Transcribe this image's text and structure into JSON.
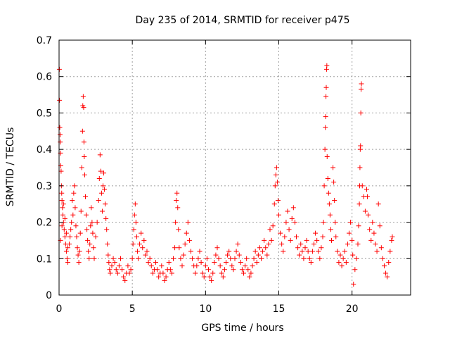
{
  "chart_data": {
    "type": "scatter",
    "title": "Day 235 of 2014, SRMTID for receiver p475",
    "xlabel": "GPS time / hours",
    "ylabel": "SRMTID / TECUs",
    "xlim": [
      0,
      24
    ],
    "ylim": [
      0,
      0.7
    ],
    "xticks": [
      0,
      5,
      10,
      15,
      20
    ],
    "yticks": [
      0,
      0.1,
      0.2,
      0.3,
      0.4,
      0.5,
      0.6,
      0.7
    ],
    "grid": true,
    "marker": "+",
    "marker_color": "#ff0000",
    "series": [
      {
        "name": "SRMTID p475",
        "points": [
          [
            0.02,
            0.62
          ],
          [
            0.03,
            0.535
          ],
          [
            0.05,
            0.46
          ],
          [
            0.07,
            0.44
          ],
          [
            0.08,
            0.42
          ],
          [
            0.1,
            0.39
          ],
          [
            0.12,
            0.355
          ],
          [
            0.14,
            0.34
          ],
          [
            0.16,
            0.3
          ],
          [
            0.18,
            0.28
          ],
          [
            0.2,
            0.26
          ],
          [
            0.23,
            0.24
          ],
          [
            0.26,
            0.22
          ],
          [
            0.3,
            0.2
          ],
          [
            0.35,
            0.18
          ],
          [
            0.4,
            0.16
          ],
          [
            0.45,
            0.14
          ],
          [
            0.5,
            0.12
          ],
          [
            0.55,
            0.1
          ],
          [
            0.6,
            0.09
          ],
          [
            0.1,
            0.15
          ],
          [
            0.2,
            0.19
          ],
          [
            0.3,
            0.25
          ],
          [
            0.4,
            0.21
          ],
          [
            0.5,
            0.17
          ],
          [
            0.6,
            0.13
          ],
          [
            0.7,
            0.14
          ],
          [
            0.75,
            0.16
          ],
          [
            0.8,
            0.18
          ],
          [
            0.85,
            0.2
          ],
          [
            0.9,
            0.26
          ],
          [
            0.95,
            0.22
          ],
          [
            1.0,
            0.28
          ],
          [
            1.05,
            0.3
          ],
          [
            1.1,
            0.24
          ],
          [
            1.15,
            0.19
          ],
          [
            1.2,
            0.16
          ],
          [
            1.25,
            0.13
          ],
          [
            1.3,
            0.11
          ],
          [
            1.35,
            0.09
          ],
          [
            1.4,
            0.12
          ],
          [
            1.45,
            0.17
          ],
          [
            1.5,
            0.23
          ],
          [
            1.55,
            0.35
          ],
          [
            1.6,
            0.45
          ],
          [
            1.62,
            0.52
          ],
          [
            1.65,
            0.545
          ],
          [
            1.68,
            0.515
          ],
          [
            1.7,
            0.42
          ],
          [
            1.72,
            0.38
          ],
          [
            1.75,
            0.33
          ],
          [
            1.8,
            0.27
          ],
          [
            1.85,
            0.22
          ],
          [
            1.9,
            0.18
          ],
          [
            1.95,
            0.15
          ],
          [
            2.0,
            0.12
          ],
          [
            2.05,
            0.1
          ],
          [
            2.1,
            0.14
          ],
          [
            2.15,
            0.19
          ],
          [
            2.2,
            0.24
          ],
          [
            2.25,
            0.2
          ],
          [
            2.3,
            0.17
          ],
          [
            2.35,
            0.13
          ],
          [
            2.4,
            0.1
          ],
          [
            2.5,
            0.16
          ],
          [
            2.6,
            0.2
          ],
          [
            2.7,
            0.26
          ],
          [
            2.75,
            0.32
          ],
          [
            2.8,
            0.385
          ],
          [
            2.85,
            0.34
          ],
          [
            2.9,
            0.28
          ],
          [
            2.95,
            0.23
          ],
          [
            3.0,
            0.3
          ],
          [
            3.05,
            0.335
          ],
          [
            3.1,
            0.29
          ],
          [
            3.15,
            0.25
          ],
          [
            3.2,
            0.21
          ],
          [
            3.25,
            0.18
          ],
          [
            3.3,
            0.14
          ],
          [
            3.35,
            0.11
          ],
          [
            3.4,
            0.09
          ],
          [
            3.45,
            0.07
          ],
          [
            3.5,
            0.06
          ],
          [
            3.6,
            0.08
          ],
          [
            3.7,
            0.1
          ],
          [
            3.8,
            0.09
          ],
          [
            3.9,
            0.07
          ],
          [
            4.0,
            0.06
          ],
          [
            4.1,
            0.08
          ],
          [
            4.2,
            0.1
          ],
          [
            4.3,
            0.07
          ],
          [
            4.4,
            0.05
          ],
          [
            4.5,
            0.04
          ],
          [
            4.6,
            0.06
          ],
          [
            4.7,
            0.08
          ],
          [
            4.8,
            0.06
          ],
          [
            4.9,
            0.07
          ],
          [
            5.0,
            0.1
          ],
          [
            5.05,
            0.14
          ],
          [
            5.1,
            0.18
          ],
          [
            5.15,
            0.22
          ],
          [
            5.2,
            0.25
          ],
          [
            5.25,
            0.2
          ],
          [
            5.3,
            0.16
          ],
          [
            5.35,
            0.12
          ],
          [
            5.4,
            0.1
          ],
          [
            5.5,
            0.14
          ],
          [
            5.6,
            0.17
          ],
          [
            5.7,
            0.13
          ],
          [
            5.8,
            0.15
          ],
          [
            5.9,
            0.11
          ],
          [
            6.0,
            0.12
          ],
          [
            6.1,
            0.09
          ],
          [
            6.2,
            0.1
          ],
          [
            6.3,
            0.08
          ],
          [
            6.4,
            0.06
          ],
          [
            6.5,
            0.07
          ],
          [
            6.6,
            0.09
          ],
          [
            6.7,
            0.07
          ],
          [
            6.8,
            0.05
          ],
          [
            6.9,
            0.06
          ],
          [
            7.0,
            0.08
          ],
          [
            7.1,
            0.06
          ],
          [
            7.2,
            0.04
          ],
          [
            7.3,
            0.05
          ],
          [
            7.4,
            0.07
          ],
          [
            7.5,
            0.09
          ],
          [
            7.6,
            0.07
          ],
          [
            7.7,
            0.06
          ],
          [
            7.8,
            0.1
          ],
          [
            7.9,
            0.13
          ],
          [
            7.95,
            0.2
          ],
          [
            8.0,
            0.26
          ],
          [
            8.05,
            0.28
          ],
          [
            8.1,
            0.24
          ],
          [
            8.15,
            0.18
          ],
          [
            8.2,
            0.13
          ],
          [
            8.3,
            0.1
          ],
          [
            8.4,
            0.08
          ],
          [
            8.5,
            0.11
          ],
          [
            8.6,
            0.14
          ],
          [
            8.7,
            0.17
          ],
          [
            8.8,
            0.2
          ],
          [
            8.9,
            0.15
          ],
          [
            9.0,
            0.12
          ],
          [
            9.1,
            0.1
          ],
          [
            9.2,
            0.08
          ],
          [
            9.3,
            0.06
          ],
          [
            9.4,
            0.08
          ],
          [
            9.5,
            0.1
          ],
          [
            9.6,
            0.12
          ],
          [
            9.7,
            0.09
          ],
          [
            9.8,
            0.06
          ],
          [
            9.9,
            0.05
          ],
          [
            10.0,
            0.08
          ],
          [
            10.1,
            0.1
          ],
          [
            10.2,
            0.07
          ],
          [
            10.3,
            0.05
          ],
          [
            10.4,
            0.04
          ],
          [
            10.5,
            0.06
          ],
          [
            10.6,
            0.09
          ],
          [
            10.7,
            0.11
          ],
          [
            10.8,
            0.13
          ],
          [
            10.9,
            0.1
          ],
          [
            11.0,
            0.08
          ],
          [
            11.1,
            0.06
          ],
          [
            11.2,
            0.05
          ],
          [
            11.3,
            0.07
          ],
          [
            11.4,
            0.09
          ],
          [
            11.5,
            0.11
          ],
          [
            11.6,
            0.12
          ],
          [
            11.7,
            0.1
          ],
          [
            11.8,
            0.08
          ],
          [
            11.9,
            0.07
          ],
          [
            12.0,
            0.1
          ],
          [
            12.1,
            0.12
          ],
          [
            12.2,
            0.14
          ],
          [
            12.3,
            0.11
          ],
          [
            12.4,
            0.09
          ],
          [
            12.5,
            0.07
          ],
          [
            12.6,
            0.06
          ],
          [
            12.7,
            0.08
          ],
          [
            12.8,
            0.1
          ],
          [
            12.9,
            0.07
          ],
          [
            13.0,
            0.05
          ],
          [
            13.1,
            0.06
          ],
          [
            13.2,
            0.08
          ],
          [
            13.3,
            0.1
          ],
          [
            13.4,
            0.12
          ],
          [
            13.5,
            0.09
          ],
          [
            13.6,
            0.11
          ],
          [
            13.7,
            0.13
          ],
          [
            13.8,
            0.1
          ],
          [
            13.9,
            0.12
          ],
          [
            14.0,
            0.15
          ],
          [
            14.1,
            0.13
          ],
          [
            14.2,
            0.11
          ],
          [
            14.3,
            0.14
          ],
          [
            14.4,
            0.18
          ],
          [
            14.5,
            0.15
          ],
          [
            14.6,
            0.19
          ],
          [
            14.7,
            0.25
          ],
          [
            14.75,
            0.3
          ],
          [
            14.8,
            0.33
          ],
          [
            14.85,
            0.35
          ],
          [
            14.9,
            0.31
          ],
          [
            14.95,
            0.26
          ],
          [
            15.0,
            0.22
          ],
          [
            15.1,
            0.17
          ],
          [
            15.2,
            0.14
          ],
          [
            15.3,
            0.12
          ],
          [
            15.4,
            0.16
          ],
          [
            15.5,
            0.2
          ],
          [
            15.6,
            0.23
          ],
          [
            15.7,
            0.18
          ],
          [
            15.8,
            0.15
          ],
          [
            15.9,
            0.21
          ],
          [
            16.0,
            0.24
          ],
          [
            16.1,
            0.2
          ],
          [
            16.2,
            0.16
          ],
          [
            16.3,
            0.13
          ],
          [
            16.4,
            0.11
          ],
          [
            16.5,
            0.14
          ],
          [
            16.6,
            0.12
          ],
          [
            16.7,
            0.1
          ],
          [
            16.8,
            0.13
          ],
          [
            16.9,
            0.15
          ],
          [
            17.0,
            0.12
          ],
          [
            17.1,
            0.1
          ],
          [
            17.2,
            0.09
          ],
          [
            17.3,
            0.12
          ],
          [
            17.4,
            0.14
          ],
          [
            17.5,
            0.17
          ],
          [
            17.6,
            0.15
          ],
          [
            17.7,
            0.12
          ],
          [
            17.8,
            0.1
          ],
          [
            17.9,
            0.13
          ],
          [
            18.0,
            0.16
          ],
          [
            18.05,
            0.2
          ],
          [
            18.1,
            0.3
          ],
          [
            18.15,
            0.4
          ],
          [
            18.18,
            0.46
          ],
          [
            18.2,
            0.49
          ],
          [
            18.22,
            0.545
          ],
          [
            18.24,
            0.57
          ],
          [
            18.26,
            0.62
          ],
          [
            18.28,
            0.63
          ],
          [
            18.3,
            0.38
          ],
          [
            18.35,
            0.32
          ],
          [
            18.4,
            0.28
          ],
          [
            18.45,
            0.25
          ],
          [
            18.5,
            0.22
          ],
          [
            18.55,
            0.18
          ],
          [
            18.6,
            0.15
          ],
          [
            18.7,
            0.35
          ],
          [
            18.75,
            0.31
          ],
          [
            18.8,
            0.26
          ],
          [
            18.85,
            0.2
          ],
          [
            18.9,
            0.16
          ],
          [
            19.0,
            0.12
          ],
          [
            19.1,
            0.09
          ],
          [
            19.2,
            0.11
          ],
          [
            19.3,
            0.08
          ],
          [
            19.4,
            0.1
          ],
          [
            19.5,
            0.12
          ],
          [
            19.6,
            0.09
          ],
          [
            19.7,
            0.14
          ],
          [
            19.8,
            0.17
          ],
          [
            19.9,
            0.2
          ],
          [
            20.0,
            0.15
          ],
          [
            20.05,
            0.11
          ],
          [
            20.1,
            0.03
          ],
          [
            20.2,
            0.07
          ],
          [
            20.3,
            0.1
          ],
          [
            20.4,
            0.14
          ],
          [
            20.45,
            0.19
          ],
          [
            20.5,
            0.25
          ],
          [
            20.52,
            0.3
          ],
          [
            20.54,
            0.35
          ],
          [
            20.56,
            0.4
          ],
          [
            20.58,
            0.41
          ],
          [
            20.6,
            0.5
          ],
          [
            20.62,
            0.565
          ],
          [
            20.64,
            0.58
          ],
          [
            20.7,
            0.3
          ],
          [
            20.8,
            0.27
          ],
          [
            20.9,
            0.23
          ],
          [
            21.0,
            0.29
          ],
          [
            21.05,
            0.27
          ],
          [
            21.1,
            0.22
          ],
          [
            21.2,
            0.18
          ],
          [
            21.3,
            0.15
          ],
          [
            21.4,
            0.2
          ],
          [
            21.5,
            0.17
          ],
          [
            21.6,
            0.14
          ],
          [
            21.7,
            0.12
          ],
          [
            21.8,
            0.25
          ],
          [
            21.9,
            0.19
          ],
          [
            22.0,
            0.13
          ],
          [
            22.1,
            0.1
          ],
          [
            22.2,
            0.08
          ],
          [
            22.3,
            0.06
          ],
          [
            22.4,
            0.05
          ],
          [
            22.5,
            0.09
          ],
          [
            22.6,
            0.12
          ],
          [
            22.7,
            0.15
          ],
          [
            22.75,
            0.16
          ]
        ]
      }
    ]
  }
}
